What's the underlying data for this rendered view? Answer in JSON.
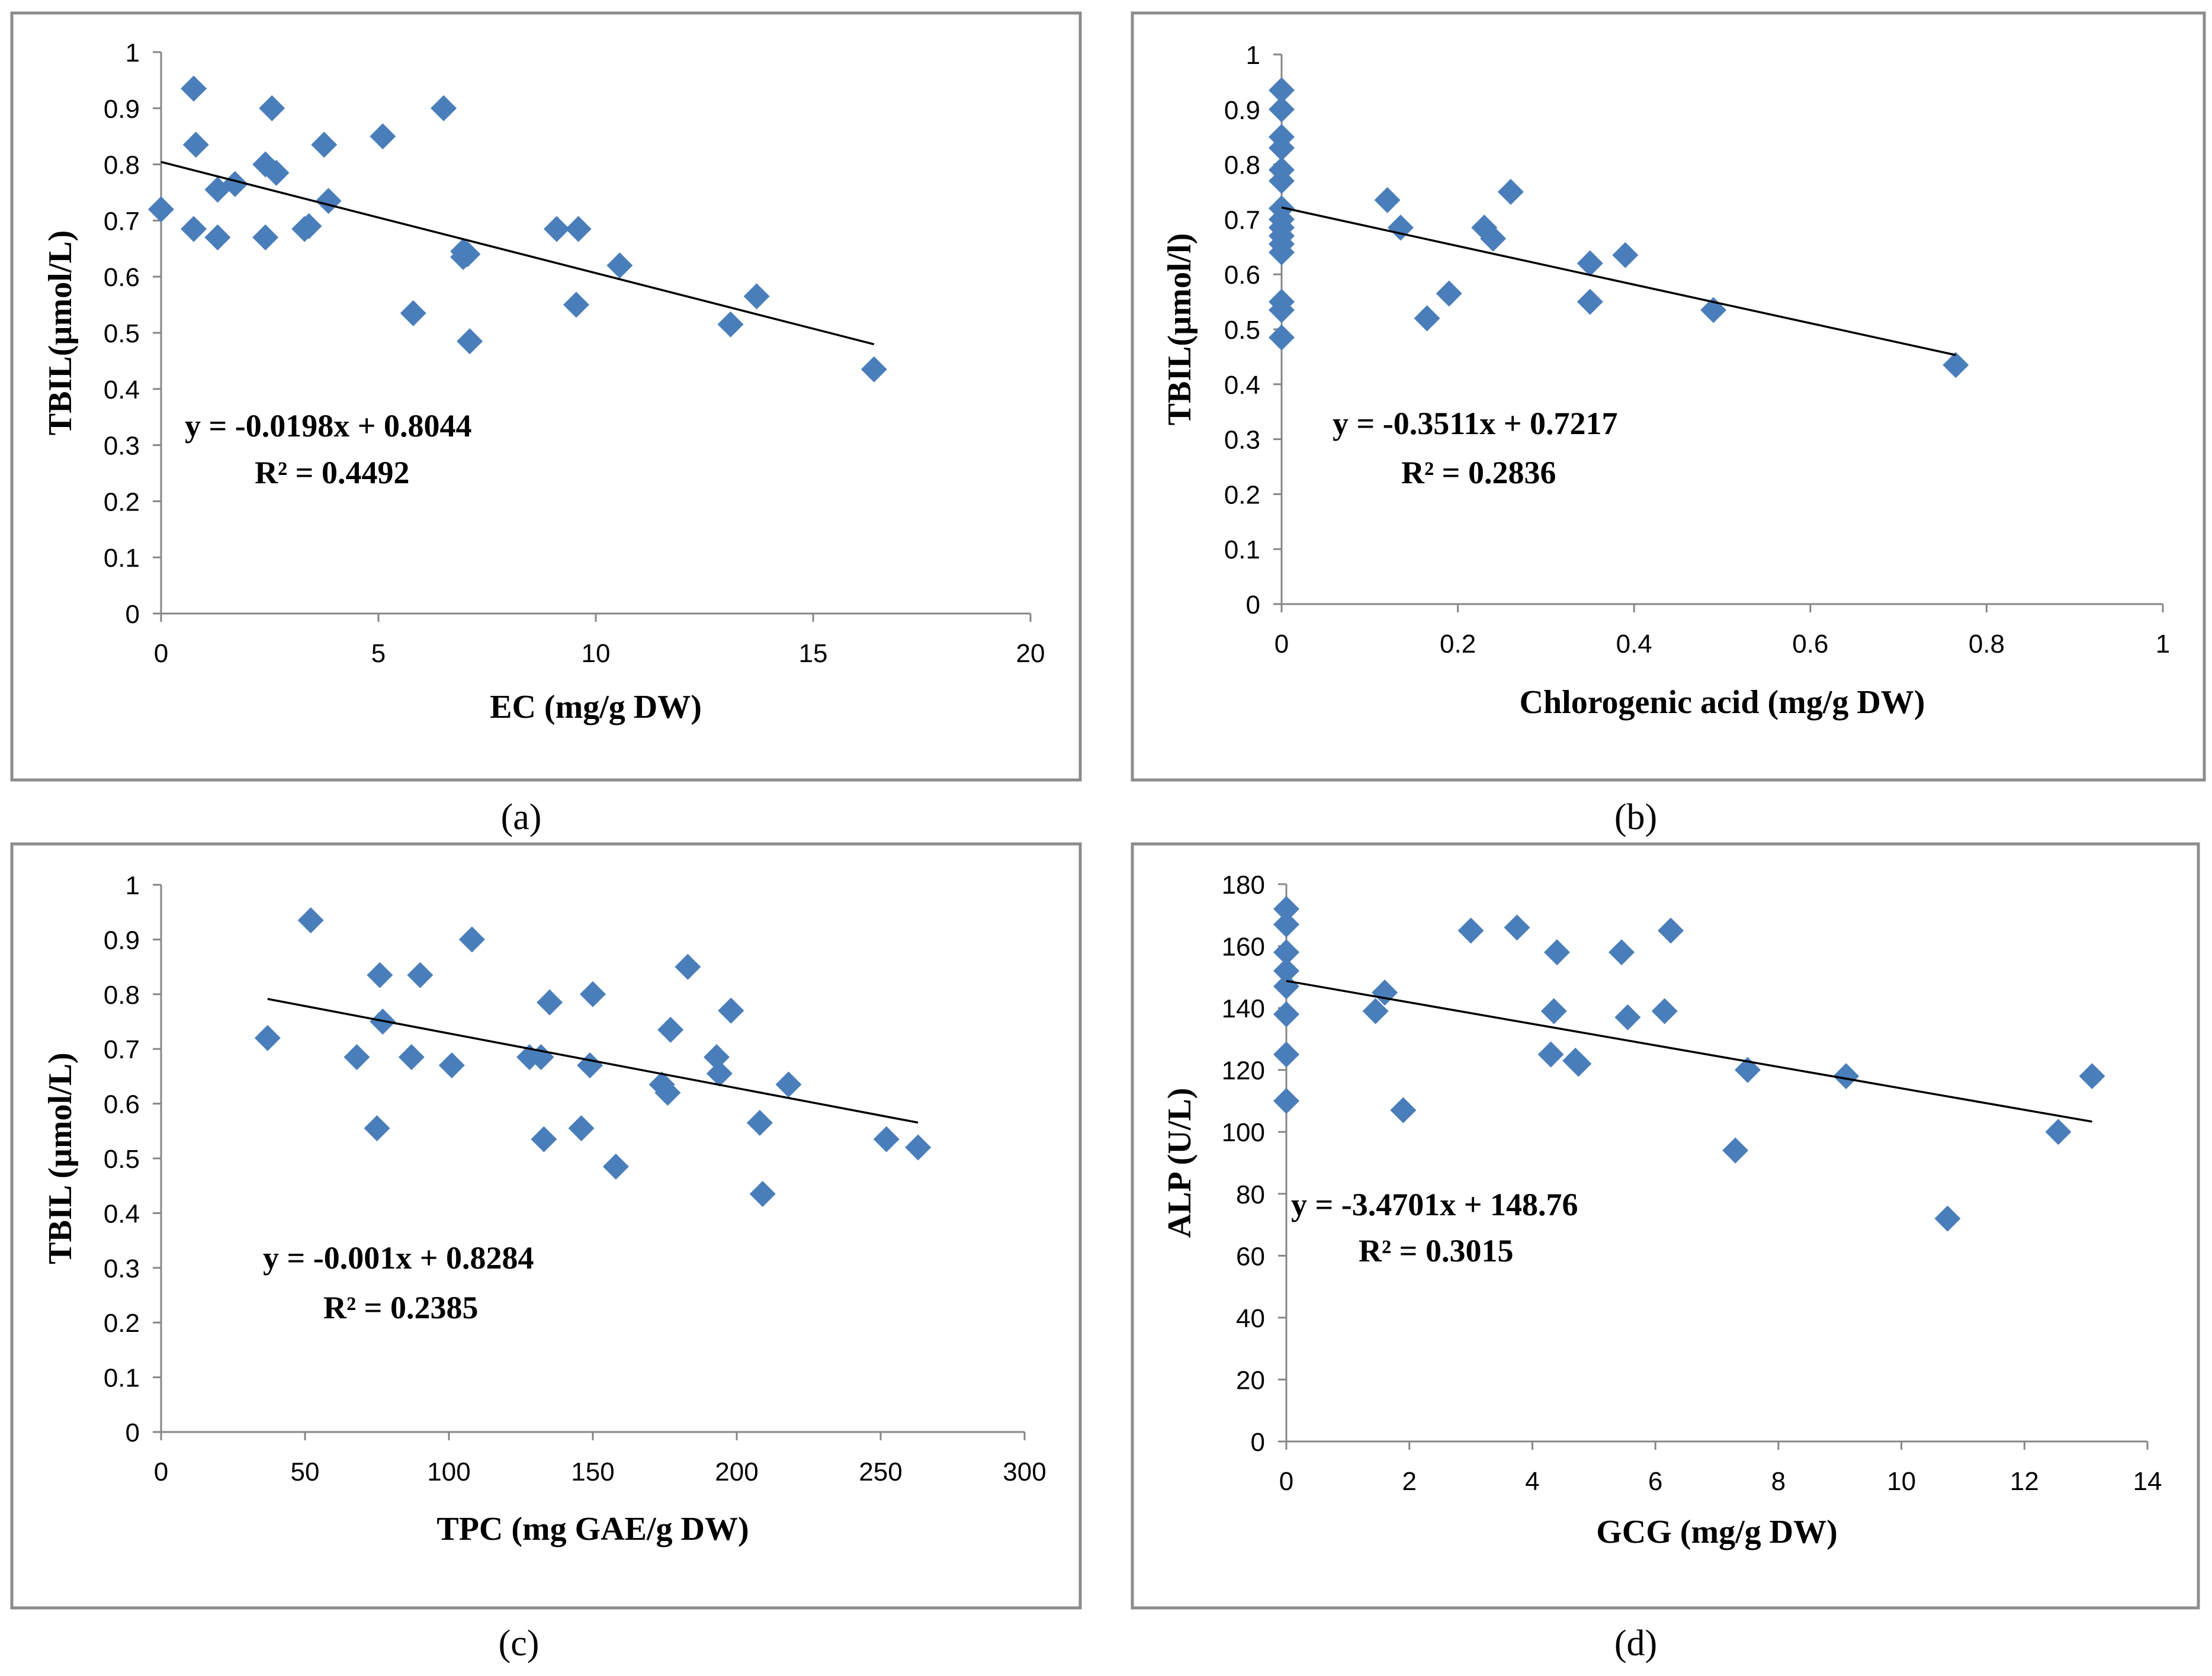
{
  "chart_data": [
    {
      "id": "a",
      "type": "scatter",
      "caption": "(a)",
      "xlabel": "EC (mg/g DW)",
      "ylabel": "TBIL(µmol/L)",
      "xlim": [
        0,
        20
      ],
      "ylim": [
        0,
        1
      ],
      "xticks": [
        "0",
        "5",
        "10",
        "15",
        "20"
      ],
      "yticks": [
        "0",
        "0.1",
        "0.2",
        "0.3",
        "0.4",
        "0.5",
        "0.6",
        "0.7",
        "0.8",
        "0.9",
        "1"
      ],
      "x": [
        0,
        0.75,
        0.8,
        0.75,
        1.3,
        1.3,
        1.7,
        2.4,
        2.4,
        2.55,
        2.65,
        3.3,
        3.4,
        3.75,
        3.85,
        5.1,
        5.8,
        6.5,
        6.95,
        6.95,
        7.05,
        7.1,
        9.1,
        9.55,
        9.6,
        10.55,
        13.1,
        13.7,
        16.4
      ],
      "y": [
        0.72,
        0.935,
        0.835,
        0.685,
        0.755,
        0.67,
        0.765,
        0.8,
        0.67,
        0.9,
        0.785,
        0.685,
        0.69,
        0.835,
        0.735,
        0.85,
        0.535,
        0.9,
        0.645,
        0.635,
        0.64,
        0.485,
        0.685,
        0.55,
        0.685,
        0.62,
        0.515,
        0.565,
        0.435
      ],
      "trendline": {
        "slope": -0.0198,
        "intercept": 0.8044,
        "x_range": [
          0,
          16.4
        ]
      },
      "equation": "y = -0.0198x + 0.8044",
      "r2": "R² = 0.4492"
    },
    {
      "id": "b",
      "type": "scatter",
      "caption": "(b)",
      "xlabel": "Chlorogenic acid (mg/g DW)",
      "ylabel": "TBIL(µmol/l)",
      "xlim": [
        0,
        1
      ],
      "ylim": [
        0,
        1
      ],
      "xticks": [
        "0",
        "0.2",
        "0.4",
        "0.6",
        "0.8",
        "1"
      ],
      "yticks": [
        "0",
        "0.1",
        "0.2",
        "0.3",
        "0.4",
        "0.5",
        "0.6",
        "0.7",
        "0.8",
        "0.9",
        "1"
      ],
      "x": [
        0,
        0,
        0,
        0,
        0,
        0,
        0,
        0,
        0,
        0,
        0,
        0,
        0,
        0,
        0,
        0.12,
        0.135,
        0.165,
        0.19,
        0.23,
        0.24,
        0.26,
        0.35,
        0.35,
        0.39,
        0.49,
        0.765
      ],
      "y": [
        0.935,
        0.9,
        0.85,
        0.83,
        0.79,
        0.77,
        0.72,
        0.685,
        0.67,
        0.655,
        0.64,
        0.55,
        0.535,
        0.485,
        0.7,
        0.735,
        0.685,
        0.52,
        0.565,
        0.685,
        0.665,
        0.75,
        0.62,
        0.55,
        0.635,
        0.535,
        0.435
      ],
      "trendline": {
        "slope": -0.3511,
        "intercept": 0.7217,
        "x_range": [
          0,
          0.765
        ]
      },
      "equation": "y = -0.3511x + 0.7217",
      "r2": "R² = 0.2836"
    },
    {
      "id": "c",
      "type": "scatter",
      "caption": "(c)",
      "xlabel": "TPC (mg GAE/g DW)",
      "ylabel": "TBIL (µmol/L)",
      "xlim": [
        0,
        300
      ],
      "ylim": [
        0,
        1
      ],
      "xticks": [
        "0",
        "50",
        "100",
        "150",
        "200",
        "250",
        "300"
      ],
      "yticks": [
        "0",
        "0.1",
        "0.2",
        "0.3",
        "0.4",
        "0.5",
        "0.6",
        "0.7",
        "0.8",
        "0.9",
        "1"
      ],
      "x": [
        37,
        52,
        68,
        75,
        76,
        77,
        87,
        90,
        101,
        108,
        128,
        132,
        133,
        135,
        146,
        149,
        150,
        158,
        174,
        176,
        177,
        183,
        193,
        194,
        198,
        208,
        209,
        218,
        252,
        263
      ],
      "y": [
        0.72,
        0.935,
        0.685,
        0.555,
        0.835,
        0.75,
        0.685,
        0.835,
        0.67,
        0.9,
        0.685,
        0.685,
        0.535,
        0.785,
        0.555,
        0.67,
        0.8,
        0.485,
        0.635,
        0.62,
        0.735,
        0.85,
        0.685,
        0.655,
        0.77,
        0.565,
        0.435,
        0.635,
        0.535,
        0.52
      ],
      "trendline": {
        "slope": -0.001,
        "intercept": 0.8284,
        "x_range": [
          37,
          263
        ]
      },
      "equation": "y = -0.001x + 0.8284",
      "r2": "R² = 0.2385"
    },
    {
      "id": "d",
      "type": "scatter",
      "caption": "(d)",
      "xlabel": "GCG (mg/g DW)",
      "ylabel": "ALP (U/L)",
      "xlim": [
        0,
        14
      ],
      "ylim": [
        0,
        180
      ],
      "xticks": [
        "0",
        "2",
        "4",
        "6",
        "8",
        "10",
        "12",
        "14"
      ],
      "yticks": [
        "0",
        "20",
        "40",
        "60",
        "80",
        "100",
        "120",
        "140",
        "160",
        "180"
      ],
      "x": [
        0,
        0,
        0,
        0,
        0,
        0,
        0,
        0,
        1.45,
        1.6,
        1.9,
        3.0,
        3.75,
        4.3,
        4.35,
        4.4,
        4.7,
        4.75,
        5.45,
        5.55,
        6.15,
        6.25,
        7.3,
        7.5,
        9.1,
        10.75,
        12.55,
        13.1
      ],
      "y": [
        172,
        167,
        158,
        152,
        147,
        138,
        125,
        110,
        139,
        145,
        107,
        165,
        166,
        125,
        139,
        158,
        123,
        122,
        158,
        137,
        139,
        165,
        94,
        120,
        118,
        72,
        100,
        118
      ],
      "trendline": {
        "slope": -3.4701,
        "intercept": 148.76,
        "x_range": [
          0,
          13.1
        ]
      },
      "equation": "y = -3.4701x + 148.76",
      "r2": "R² = 0.3015"
    }
  ]
}
